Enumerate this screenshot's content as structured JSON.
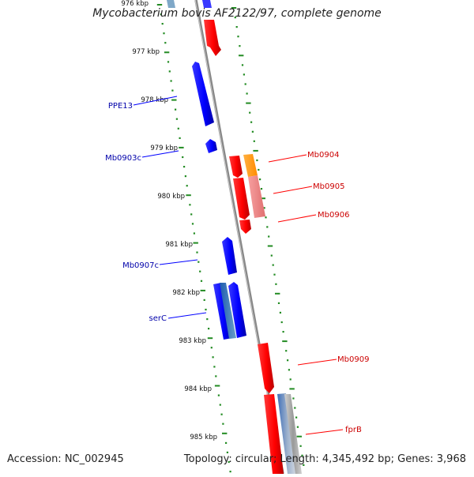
{
  "title": "Mycobacterium bovis AF2122/97, complete genome",
  "footer": {
    "accession": "Accession: NC_002945",
    "summary": "Topology: circular; Length: 4,345,492 bp; Genes: 3,968"
  },
  "colors": {
    "forward_gene": "#ff0000",
    "reverse_gene": "#0000ff",
    "rna_feature": "#ff9900",
    "backbone": "#888888",
    "tick": "#228b22",
    "forward_label": "#cc0000",
    "reverse_label": "#0000aa"
  },
  "scale_labels": [
    "976 kbp",
    "977 kbp",
    "978 kbp",
    "979 kbp",
    "980 kbp",
    "981 kbp",
    "982 kbp",
    "983 kbp",
    "984 kbp",
    "985 kbp"
  ],
  "genes": {
    "reverse": [
      "PPE13",
      "Mb0903c",
      "Mb0907c",
      "serC"
    ],
    "forward": [
      "Mb0904",
      "Mb0905",
      "Mb0906",
      "Mb0909",
      "fprB"
    ]
  }
}
